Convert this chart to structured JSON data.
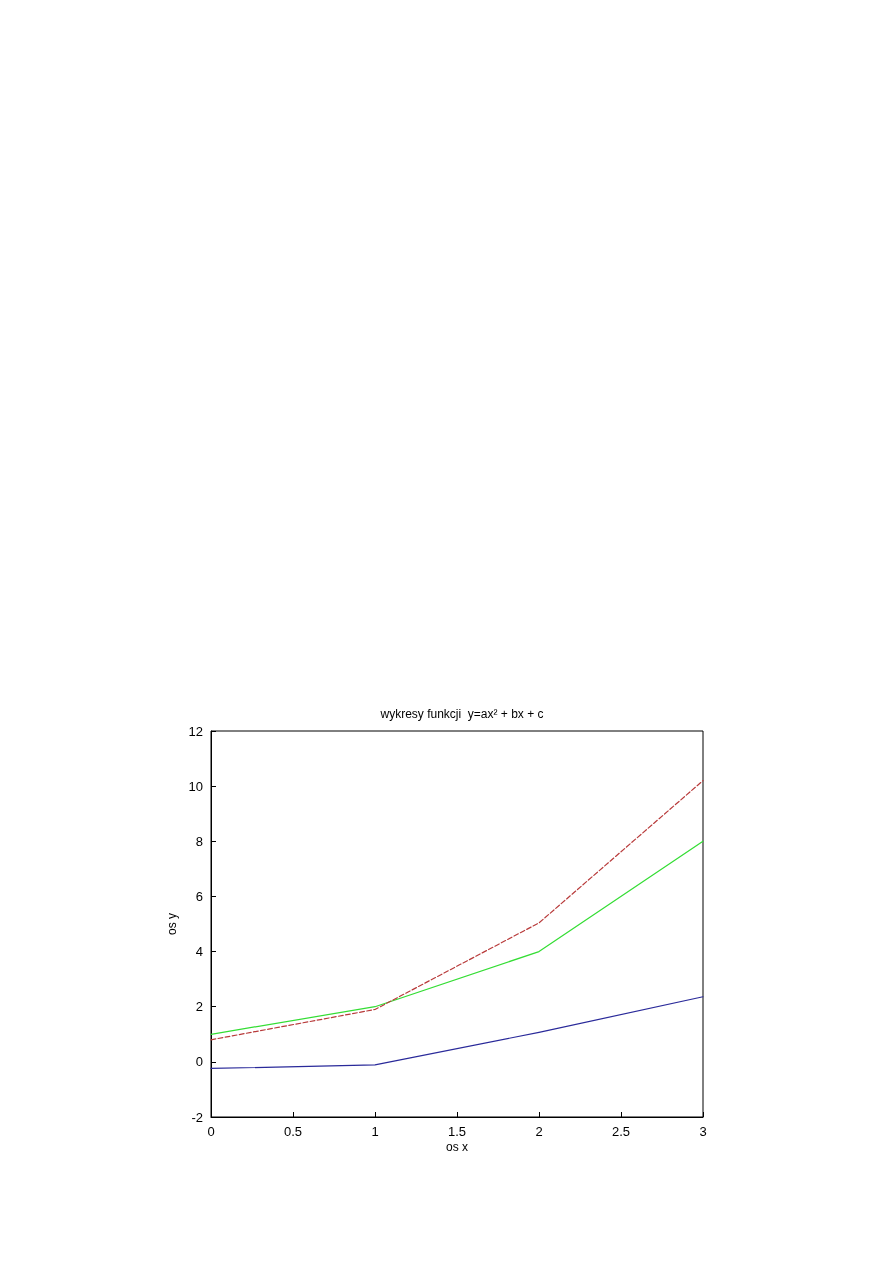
{
  "chart_data": {
    "type": "line",
    "title": "wykresy funkcji  y=ax² + bx + c",
    "xlabel": "os x",
    "ylabel": "os y",
    "x": [
      0,
      1,
      2,
      3
    ],
    "series": [
      {
        "color": "#2a2a9a",
        "values": [
          -0.24,
          -0.11,
          1.07,
          2.36
        ],
        "line_style": "solid"
      },
      {
        "color": "#33dd33",
        "values": [
          1,
          2,
          4,
          8
        ],
        "line_style": "solid"
      },
      {
        "color": "#b83a3a",
        "values": [
          0.8,
          1.9,
          5.04,
          10.2
        ],
        "line_style": "dashed"
      }
    ],
    "xlim": [
      0,
      3
    ],
    "xticks": [
      0,
      0.5,
      1,
      1.5,
      2,
      2.5,
      3
    ],
    "ylim": [
      -2,
      12
    ],
    "yticks": [
      -2,
      0,
      2,
      4,
      6,
      8,
      10,
      12
    ],
    "grid": false,
    "marker": "none"
  }
}
